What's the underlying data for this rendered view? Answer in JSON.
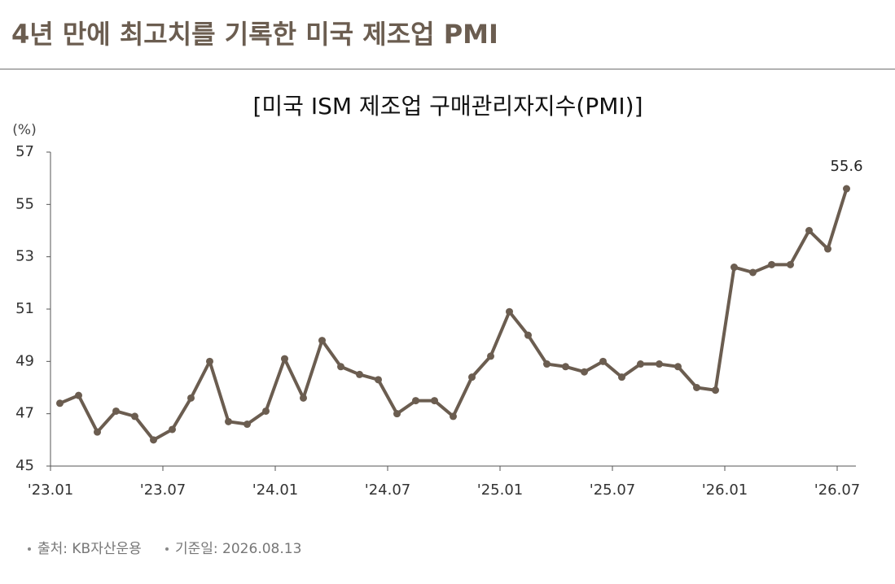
{
  "header": {
    "title": "4년 만에 최고치를 기록한 미국 제조업 PMI"
  },
  "chart_data": {
    "type": "line",
    "title": "[미국 ISM 제조업 구매관리자지수(PMI)]",
    "y_label": "(%)",
    "categories": [
      "'23.01",
      null,
      null,
      null,
      null,
      null,
      "'23.07",
      null,
      null,
      null,
      null,
      null,
      "'24.01",
      null,
      null,
      null,
      null,
      null,
      "'24.07",
      null,
      null,
      null,
      null,
      null,
      "'25.01",
      null,
      null,
      null,
      null,
      null,
      "'25.07",
      null,
      null,
      null,
      null,
      null,
      "'26.01",
      null,
      null,
      null,
      null,
      null,
      "'26.07"
    ],
    "values": [
      47.4,
      47.7,
      46.3,
      47.1,
      46.9,
      46.0,
      46.4,
      47.6,
      49.0,
      46.7,
      46.6,
      47.1,
      49.1,
      47.6,
      49.8,
      48.8,
      48.5,
      48.3,
      47.0,
      47.5,
      47.5,
      46.9,
      48.4,
      49.2,
      50.9,
      50.0,
      48.9,
      48.8,
      48.6,
      49.0,
      48.4,
      48.9,
      48.9,
      48.8,
      48.0,
      47.9,
      52.6,
      52.4,
      52.7,
      52.7,
      54.0,
      53.3,
      55.6
    ],
    "color": "#6b5d50",
    "ylim": [
      45,
      57
    ],
    "yticks": [
      45,
      47,
      49,
      51,
      53,
      55,
      57
    ],
    "grid": false
  },
  "footer": {
    "source": "출처: KB자산운용",
    "date": "기준일: 2026.08.13"
  }
}
